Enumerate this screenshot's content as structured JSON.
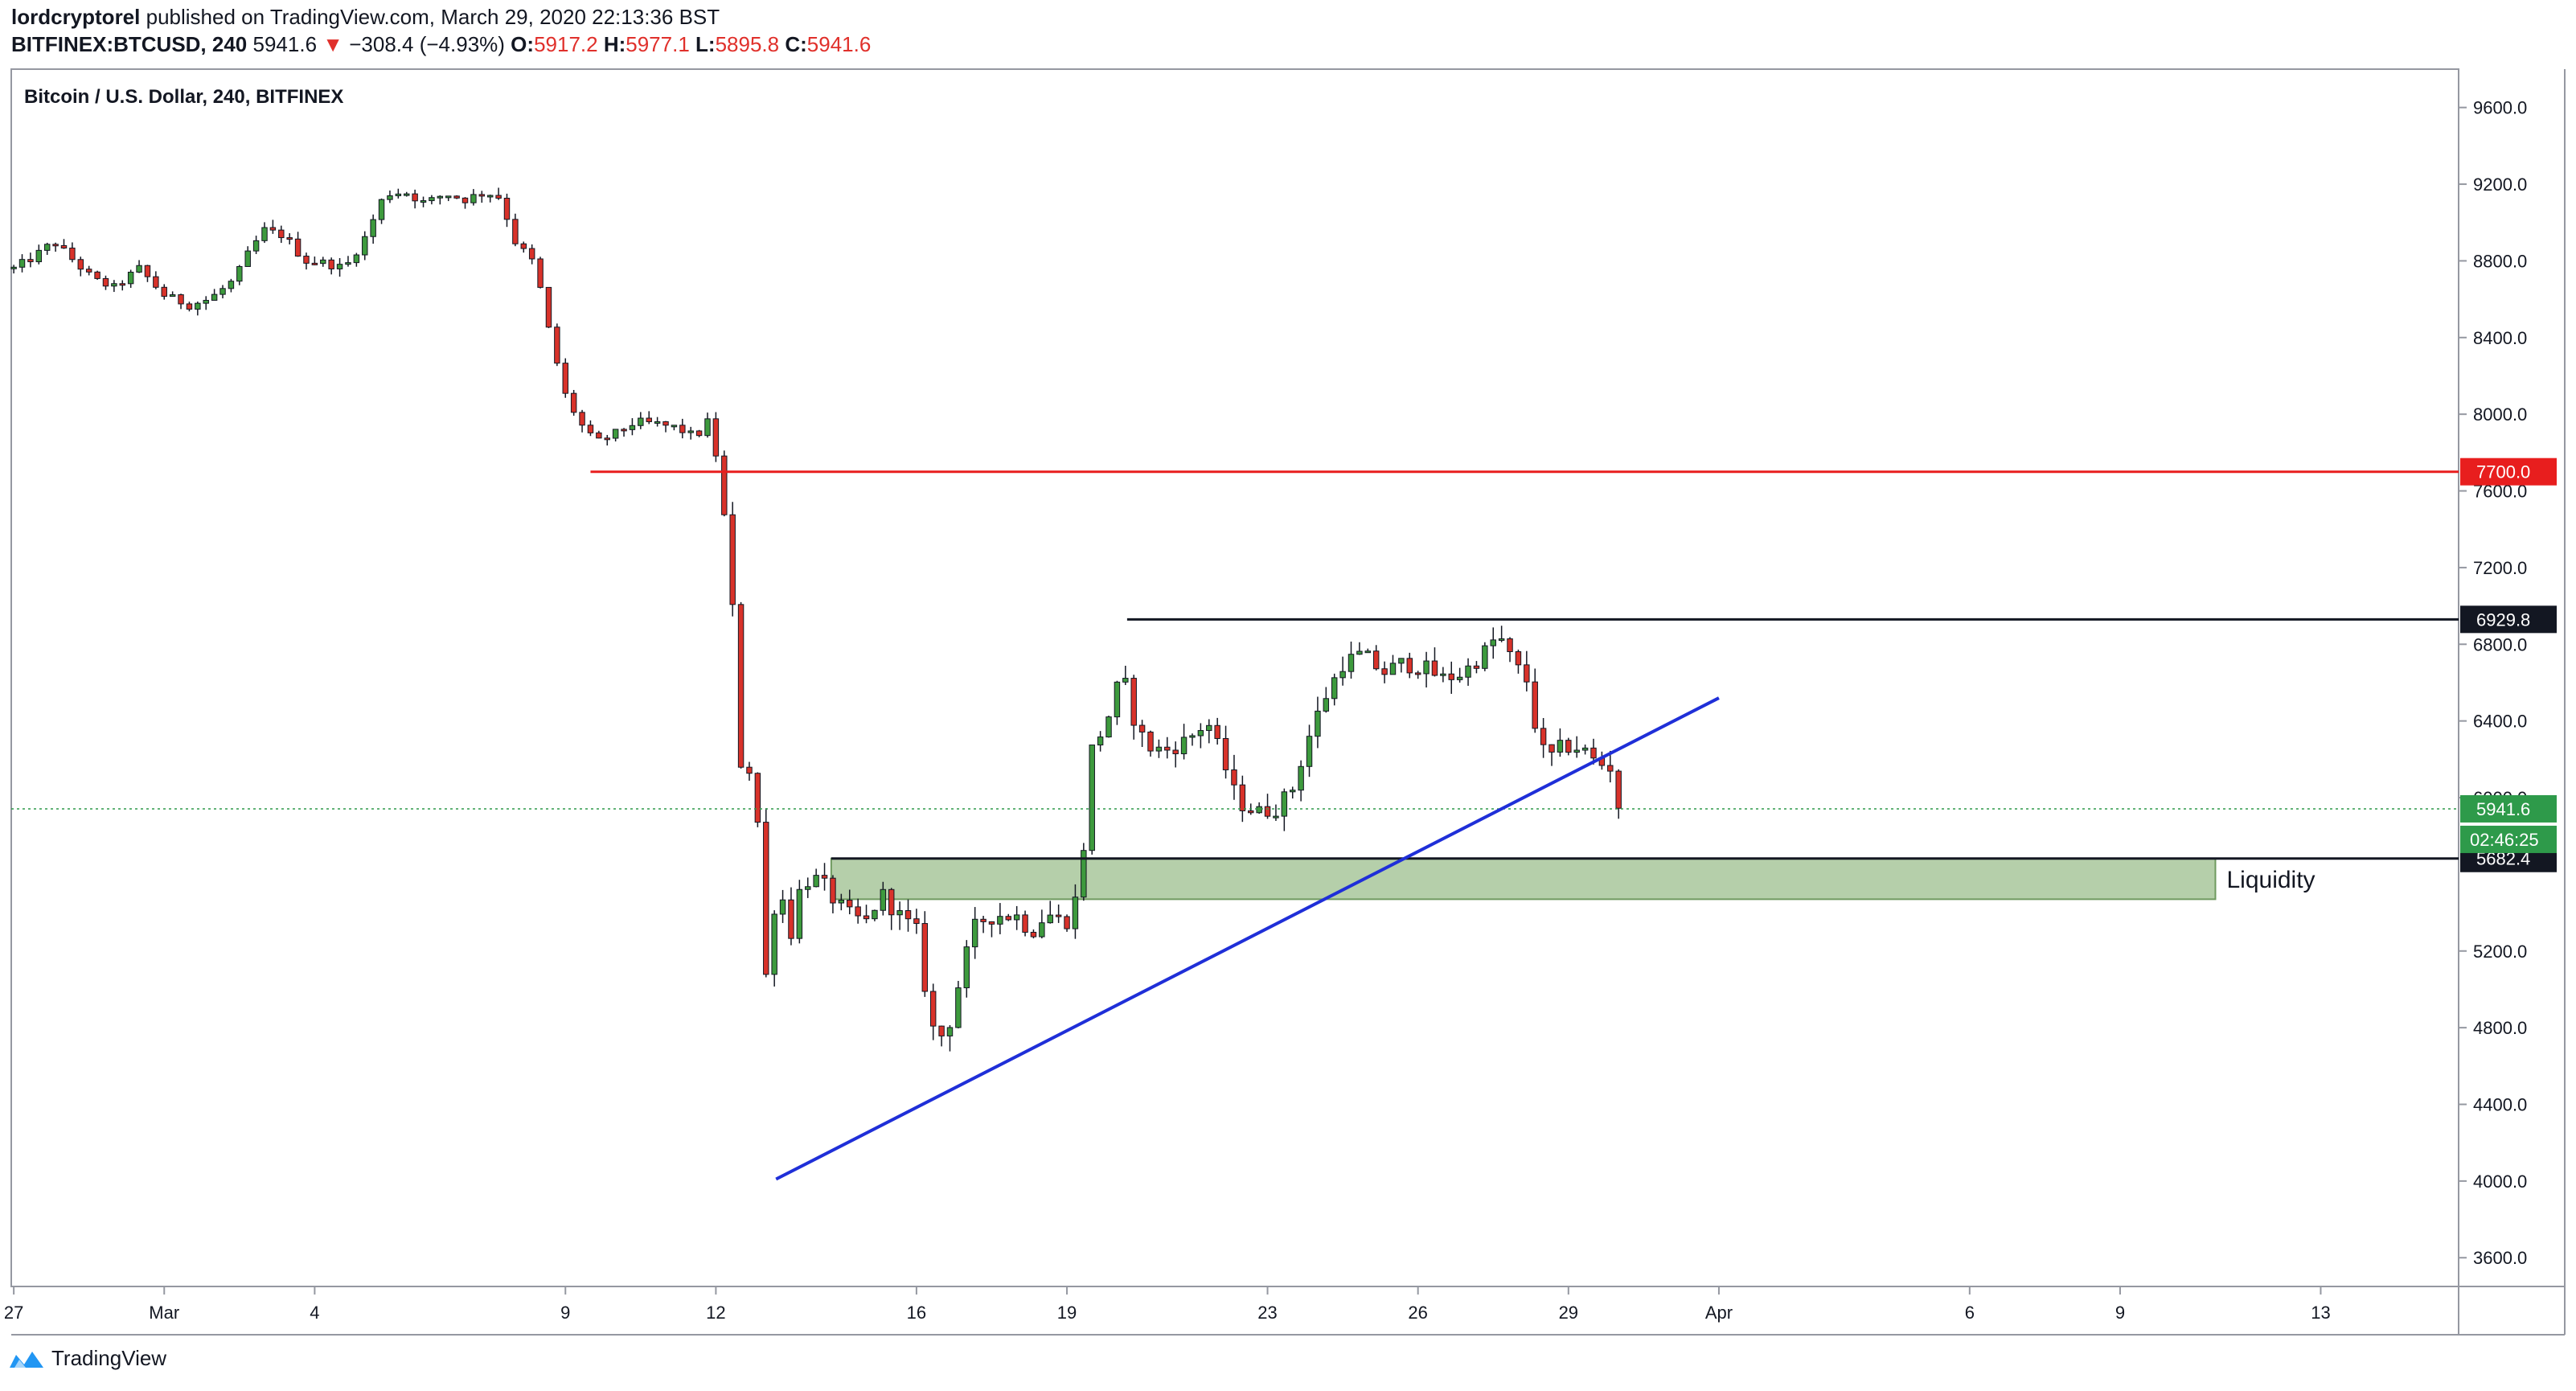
{
  "header": {
    "author": "lordcryptorel",
    "published_text": "published on TradingView.com, March 29, 2020 22:13:36 BST",
    "symbol": "BITFINEX:BTCUSD, 240",
    "last": "5941.6",
    "change_arrow": "▼",
    "change": "−308.4 (−4.93%)",
    "o_label": "O:",
    "o_value": "5917.2",
    "h_label": "H:",
    "h_value": "5977.1",
    "l_label": "L:",
    "l_value": "5895.8",
    "c_label": "C:",
    "c_value": "5941.6"
  },
  "footer": {
    "brand": "TradingView"
  },
  "chart_data": {
    "type": "candlestick",
    "title": "Bitcoin / U.S. Dollar, 240, BITFINEX",
    "ylim": [
      3450,
      9800
    ],
    "y_ticks": [
      "9600.0",
      "9200.0",
      "8800.0",
      "8400.0",
      "8000.0",
      "7600.0",
      "7200.0",
      "6800.0",
      "6400.0",
      "6000.0",
      "5200.0",
      "4800.0",
      "4400.0",
      "4000.0",
      "3600.0"
    ],
    "x_ticks": [
      "27",
      "Mar",
      "4",
      "9",
      "12",
      "16",
      "19",
      "23",
      "26",
      "29",
      "Apr",
      "6",
      "9",
      "13"
    ],
    "x_tick_days": [
      -3,
      0,
      3,
      8,
      11,
      15,
      18,
      22,
      25,
      28,
      31,
      36,
      39,
      43
    ],
    "x_range_days": [
      -3.05,
      45.75
    ],
    "colors": {
      "up": "#3d9a3d",
      "down": "#d8322a",
      "wick": "#131722",
      "resistance": "#e81e1e",
      "trendline": "#1f2fd8",
      "zone": "#b5cfaa",
      "last_price": "#2e9a4a"
    },
    "anchors": [
      [
        -3.0,
        8760
      ],
      [
        -2.6,
        8820
      ],
      [
        -2.2,
        8900
      ],
      [
        -1.8,
        8800
      ],
      [
        -1.4,
        8700
      ],
      [
        -1.0,
        8660
      ],
      [
        -0.5,
        8760
      ],
      [
        0.0,
        8620
      ],
      [
        0.5,
        8570
      ],
      [
        0.9,
        8600
      ],
      [
        1.4,
        8700
      ],
      [
        1.7,
        8850
      ],
      [
        2.0,
        8960
      ],
      [
        2.4,
        8930
      ],
      [
        2.8,
        8800
      ],
      [
        3.2,
        8790
      ],
      [
        3.6,
        8760
      ],
      [
        4.0,
        8920
      ],
      [
        4.4,
        9150
      ],
      [
        4.8,
        9160
      ],
      [
        5.2,
        9100
      ],
      [
        5.6,
        9150
      ],
      [
        6.0,
        9120
      ],
      [
        6.4,
        9160
      ],
      [
        6.7,
        9130
      ],
      [
        7.0,
        8900
      ],
      [
        7.4,
        8780
      ],
      [
        7.7,
        8400
      ],
      [
        8.0,
        8100
      ],
      [
        8.3,
        7950
      ],
      [
        8.6,
        7850
      ],
      [
        9.0,
        7900
      ],
      [
        9.4,
        7960
      ],
      [
        9.8,
        7950
      ],
      [
        10.2,
        7930
      ],
      [
        10.6,
        7880
      ],
      [
        10.9,
        7980
      ],
      [
        11.1,
        7600
      ],
      [
        11.3,
        7200
      ],
      [
        11.45,
        6200
      ],
      [
        11.6,
        6150
      ],
      [
        11.8,
        6150
      ],
      [
        11.95,
        4900
      ],
      [
        12.1,
        5400
      ],
      [
        12.3,
        5500
      ],
      [
        12.5,
        5300
      ],
      [
        12.7,
        5550
      ],
      [
        12.9,
        5580
      ],
      [
        13.1,
        5560
      ],
      [
        13.4,
        5450
      ],
      [
        13.7,
        5380
      ],
      [
        14.0,
        5350
      ],
      [
        14.3,
        5500
      ],
      [
        14.6,
        5400
      ],
      [
        14.8,
        5350
      ],
      [
        15.0,
        5300
      ],
      [
        15.3,
        4800
      ],
      [
        15.5,
        4760
      ],
      [
        15.7,
        4850
      ],
      [
        15.9,
        5100
      ],
      [
        16.2,
        5350
      ],
      [
        16.6,
        5390
      ],
      [
        17.0,
        5380
      ],
      [
        17.3,
        5300
      ],
      [
        17.6,
        5400
      ],
      [
        17.9,
        5350
      ],
      [
        18.1,
        5370
      ],
      [
        18.3,
        5650
      ],
      [
        18.5,
        6250
      ],
      [
        18.8,
        6400
      ],
      [
        19.1,
        6650
      ],
      [
        19.4,
        6350
      ],
      [
        19.7,
        6250
      ],
      [
        20.0,
        6250
      ],
      [
        20.4,
        6300
      ],
      [
        20.8,
        6400
      ],
      [
        21.1,
        6200
      ],
      [
        21.4,
        5980
      ],
      [
        21.8,
        5920
      ],
      [
        22.2,
        5950
      ],
      [
        22.5,
        6050
      ],
      [
        22.8,
        6300
      ],
      [
        23.1,
        6500
      ],
      [
        23.5,
        6700
      ],
      [
        23.9,
        6750
      ],
      [
        24.3,
        6650
      ],
      [
        24.7,
        6700
      ],
      [
        25.1,
        6680
      ],
      [
        25.5,
        6620
      ],
      [
        25.9,
        6650
      ],
      [
        26.3,
        6750
      ],
      [
        26.6,
        6850
      ],
      [
        26.9,
        6700
      ],
      [
        27.2,
        6600
      ],
      [
        27.4,
        6280
      ],
      [
        27.6,
        6200
      ],
      [
        27.9,
        6270
      ],
      [
        28.2,
        6260
      ],
      [
        28.4,
        6230
      ],
      [
        28.6,
        6160
      ],
      [
        28.8,
        6200
      ],
      [
        29.0,
        5960
      ],
      [
        29.15,
        5940
      ]
    ],
    "levels": [
      {
        "price": 7700.0,
        "label": "7700.0",
        "day_start": 8.5,
        "kind": "resistance"
      },
      {
        "price": 6929.8,
        "label": "6929.8",
        "day_start": 19.2,
        "kind": "range-top"
      },
      {
        "price": 5682.4,
        "label": "5682.4",
        "day_start": 13.3,
        "kind": "range-bottom"
      },
      {
        "price": 5941.6,
        "label": "5941.6",
        "day_start": -3.05,
        "kind": "last-price"
      }
    ],
    "countdown": "02:46:25",
    "zone": {
      "top": 5682.4,
      "bottom": 5470,
      "day_start": 13.3,
      "day_end": 40.9,
      "label": "Liquidity"
    },
    "trendline": {
      "from": [
        12.2,
        4010
      ],
      "to": [
        31.0,
        6520
      ]
    }
  }
}
